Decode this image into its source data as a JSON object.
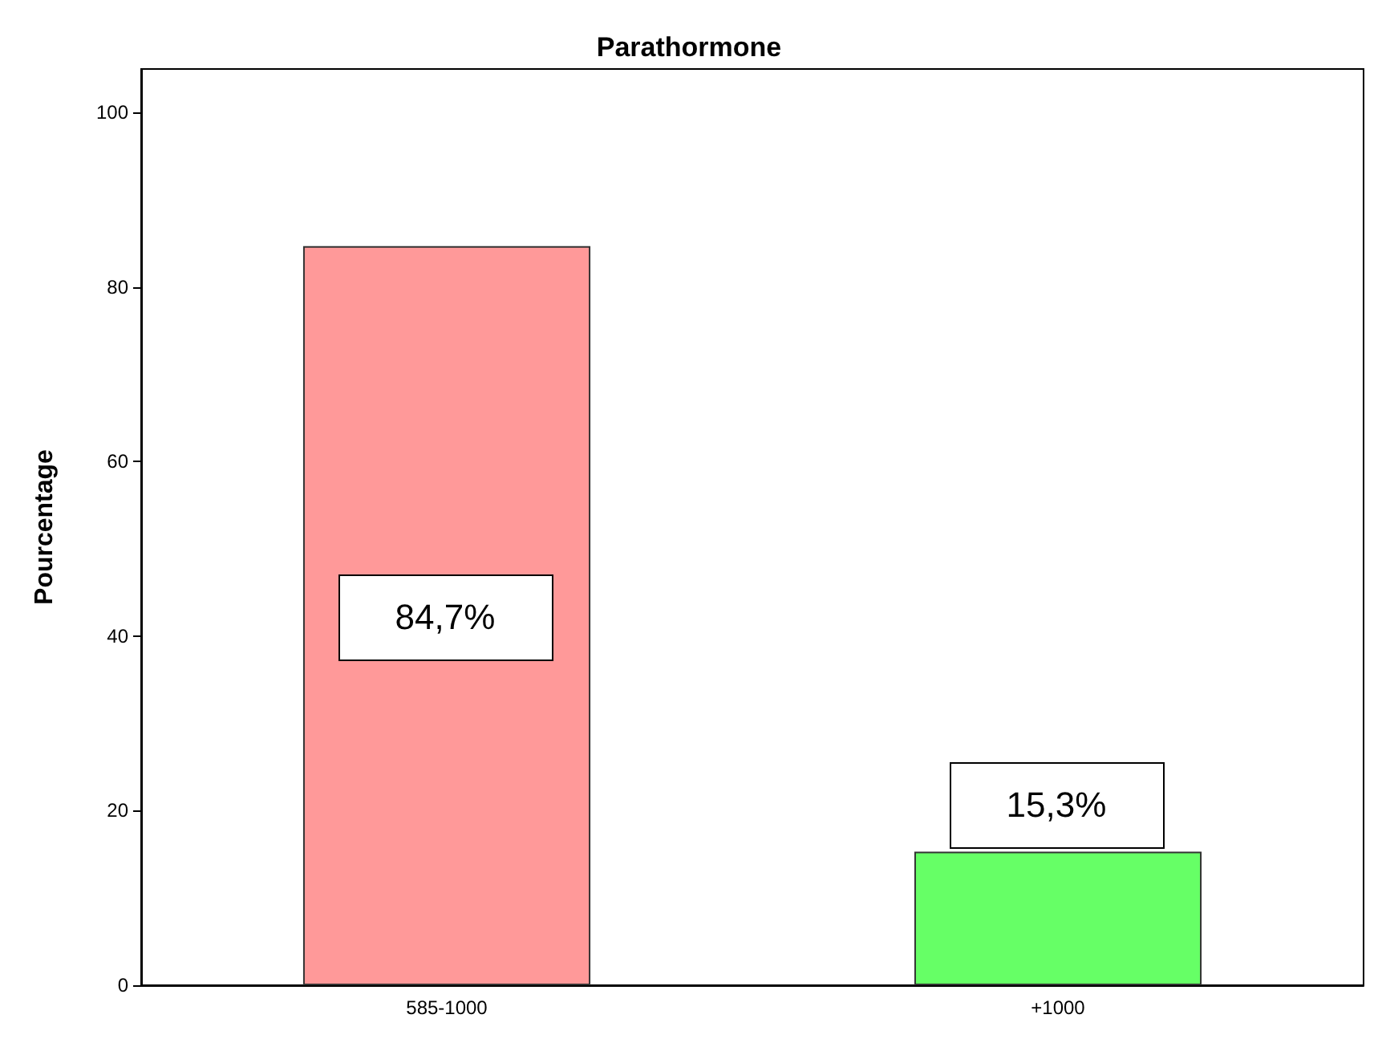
{
  "chart_data": {
    "type": "bar",
    "title": "Parathormone",
    "ylabel": "Pourcentage",
    "categories": [
      "585-1000",
      "+1000"
    ],
    "values": [
      84.7,
      15.3
    ],
    "colors": [
      "#ff9999",
      "#66ff66"
    ],
    "value_labels": [
      "84,7%",
      "15,3%"
    ],
    "ylim": [
      0,
      105
    ],
    "yticks": [
      0,
      20,
      40,
      60,
      80,
      100
    ],
    "grid": false
  }
}
